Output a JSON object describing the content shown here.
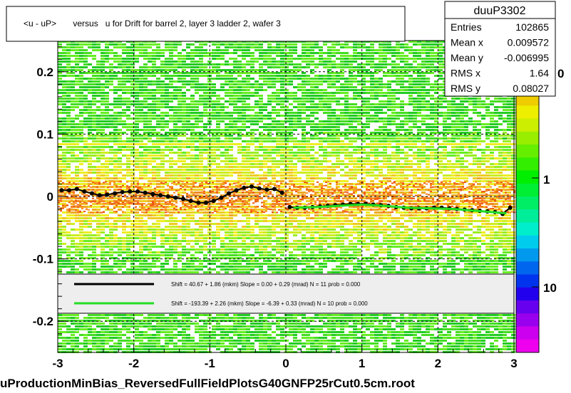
{
  "chart_data": {
    "type": "heatmap",
    "title": "<u - uP>       versus   u for Drift for barrel 2, layer 3 ladder 2, wafer 3",
    "xlabel": "uProductionMinBias_ReversedFullFieldPlotsG40GNFP25rCut0.5cm.root",
    "ylabel": "",
    "xlim": [
      -3,
      3
    ],
    "ylim": [
      -0.25,
      0.25
    ],
    "x_ticks": [
      "-3",
      "-2",
      "-1",
      "0",
      "1",
      "2",
      "3"
    ],
    "y_ticks": [
      "-0.2",
      "-0.1",
      "0",
      "0.1",
      "0.2"
    ],
    "colorbar_ticks": [
      "1",
      "10"
    ],
    "colorbar_partial_label": "0",
    "grid": true,
    "stats": {
      "name": "duuP3302",
      "rows": [
        {
          "label": "Entries",
          "value": "102865"
        },
        {
          "label": "Mean x",
          "value": "0.009572"
        },
        {
          "label": "Mean y",
          "value": "-0.006995"
        },
        {
          "label": "RMS x",
          "value": "1.64"
        },
        {
          "label": "RMS y",
          "value": "0.08027"
        }
      ]
    },
    "legend": [
      {
        "color": "#000000",
        "text": "Shift =    40.67 + 1.86 (mkm) Slope =    0.00 + 0.29 (mrad)  N = 11 prob = 0.000"
      },
      {
        "color": "#22dd22",
        "text": "Shift =  -193.39 + 2.26 (mkm) Slope =   -6.39 + 0.33 (mrad)  N = 10 prob = 0.000"
      }
    ],
    "series": [
      {
        "color": "#000000",
        "x": [
          -2.95,
          -2.85,
          -2.75,
          -2.65,
          -2.55,
          -2.45,
          -2.35,
          -2.25,
          -2.15,
          -2.05,
          -1.95,
          -1.85,
          -1.75,
          -1.65,
          -1.55,
          -1.45,
          -1.35,
          -1.25,
          -1.15,
          -1.05,
          -0.95,
          -0.85,
          -0.75,
          -0.65,
          -0.55,
          -0.45,
          -0.35,
          -0.25,
          -0.15,
          -0.05
        ],
        "y": [
          0.01,
          0.01,
          0.012,
          0.008,
          0.005,
          0.002,
          0.003,
          0.005,
          0.007,
          0.008,
          0.008,
          0.006,
          0.004,
          0.002,
          0.0,
          -0.002,
          -0.004,
          -0.007,
          -0.01,
          -0.01,
          -0.007,
          -0.002,
          0.005,
          0.01,
          0.014,
          0.016,
          0.013,
          0.011,
          0.012,
          0.006
        ]
      },
      {
        "color": "#000000",
        "x": [
          0.05,
          0.15,
          0.25,
          0.35,
          0.45,
          0.55,
          0.65,
          0.75,
          0.85,
          0.95,
          1.05,
          1.15,
          1.25,
          1.35,
          1.45,
          1.55,
          1.65,
          1.75,
          1.85,
          1.95,
          2.05,
          2.15,
          2.25,
          2.35,
          2.45,
          2.55,
          2.65,
          2.75,
          2.85,
          2.95
        ],
        "y": [
          -0.017,
          -0.018,
          -0.018,
          -0.017,
          -0.016,
          -0.015,
          -0.014,
          -0.013,
          -0.012,
          -0.012,
          -0.012,
          -0.013,
          -0.014,
          -0.015,
          -0.017,
          -0.018,
          -0.019,
          -0.019,
          -0.019,
          -0.018,
          -0.018,
          -0.019,
          -0.02,
          -0.021,
          -0.022,
          -0.023,
          -0.024,
          -0.025,
          -0.028,
          -0.018
        ]
      },
      {
        "color": "#22dd22",
        "x": [
          0.1,
          0.4,
          0.7,
          1.0,
          1.3,
          1.6,
          1.9,
          2.2,
          2.5,
          2.9
        ],
        "y": [
          -0.018,
          -0.017,
          -0.015,
          -0.013,
          -0.015,
          -0.018,
          -0.019,
          -0.02,
          -0.023,
          -0.027
        ]
      }
    ]
  }
}
